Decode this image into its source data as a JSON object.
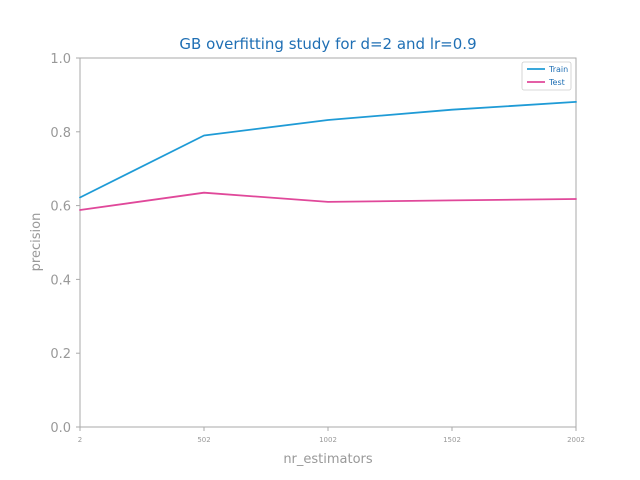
{
  "chart_data": {
    "type": "line",
    "title": "GB overfitting study for d=2 and lr=0.9",
    "xlabel": "nr_estimators",
    "ylabel": "precision",
    "x": [
      2,
      502,
      1002,
      1502,
      2002
    ],
    "xticks": [
      "2",
      "502",
      "1002",
      "1502",
      "2002"
    ],
    "yticks": [
      "0.0",
      "0.2",
      "0.4",
      "0.6",
      "0.8",
      "1.0"
    ],
    "xlim": [
      2,
      2002
    ],
    "ylim": [
      0.0,
      1.0
    ],
    "grid": false,
    "legend_position": "top-right",
    "series": [
      {
        "name": "Train",
        "color": "#1f9bd6",
        "values": [
          0.622,
          0.79,
          0.832,
          0.86,
          0.881
        ]
      },
      {
        "name": "Test",
        "color": "#e0489a",
        "values": [
          0.588,
          0.635,
          0.61,
          0.614,
          0.618
        ]
      }
    ]
  }
}
